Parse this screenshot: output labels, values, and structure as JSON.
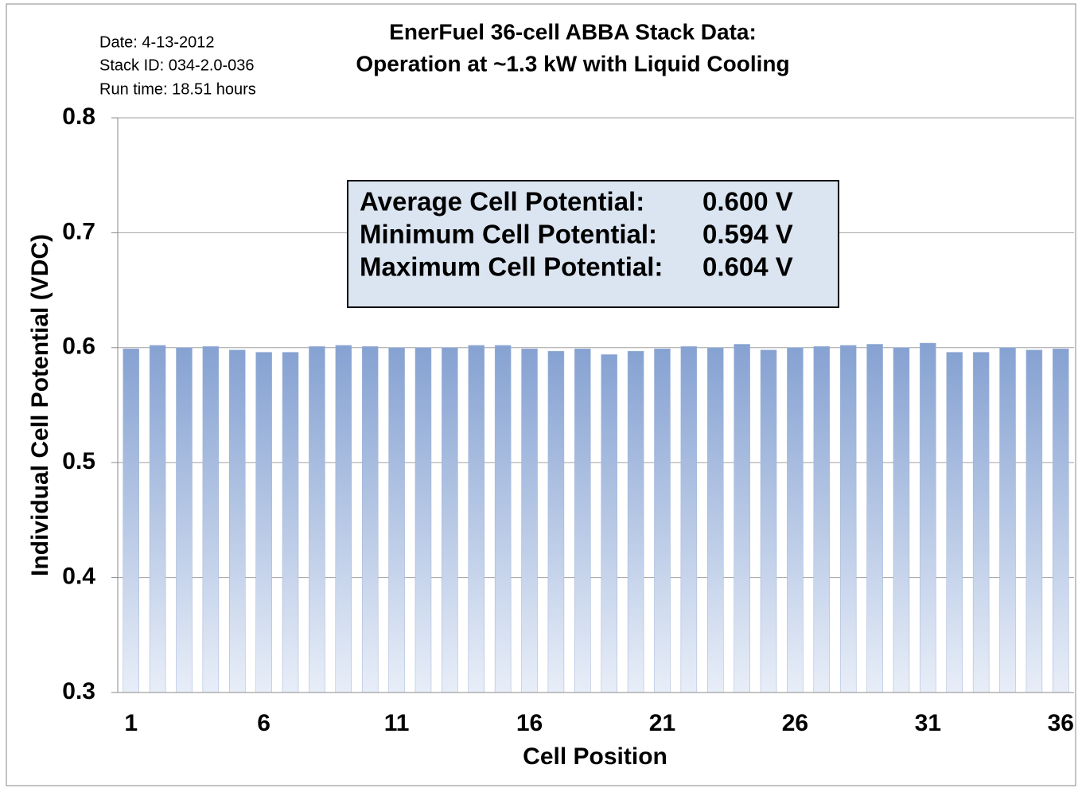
{
  "chart_data": {
    "type": "bar",
    "title": [
      "EnerFuel 36-cell ABBA Stack Data:",
      "Operation at ~1.3 kW with Liquid Cooling"
    ],
    "notes": [
      "Date: 4-13-2012",
      "Stack ID: 034-2.0-036",
      "Run time: 18.51 hours"
    ],
    "info_box": [
      {
        "label": "Average Cell Potential:",
        "value": "0.600 V"
      },
      {
        "label": "Minimum Cell Potential:",
        "value": "0.594 V"
      },
      {
        "label": "Maximum Cell Potential:",
        "value": "0.604 V"
      }
    ],
    "x_label": "Cell Position",
    "y_label": "Individual Cell Potential (VDC)",
    "categories": [
      "1",
      null,
      null,
      null,
      null,
      "6",
      null,
      null,
      null,
      null,
      "11",
      null,
      null,
      null,
      null,
      "16",
      null,
      null,
      null,
      null,
      "21",
      null,
      null,
      null,
      null,
      "26",
      null,
      null,
      null,
      null,
      "31",
      null,
      null,
      null,
      null,
      "36"
    ],
    "values": [
      0.599,
      0.602,
      0.6,
      0.601,
      0.598,
      0.596,
      0.596,
      0.601,
      0.602,
      0.601,
      0.6,
      0.6,
      0.6,
      0.602,
      0.602,
      0.599,
      0.597,
      0.599,
      0.594,
      0.597,
      0.599,
      0.601,
      0.6,
      0.603,
      0.598,
      0.6,
      0.601,
      0.602,
      0.603,
      0.6,
      0.604,
      0.596,
      0.596,
      0.6,
      0.598,
      0.599
    ],
    "color": "#8aa6d4",
    "ylim": [
      0.3,
      0.8
    ],
    "yticks": [
      0.3,
      0.4,
      0.5,
      0.6,
      0.7,
      0.8
    ],
    "grid": true
  }
}
